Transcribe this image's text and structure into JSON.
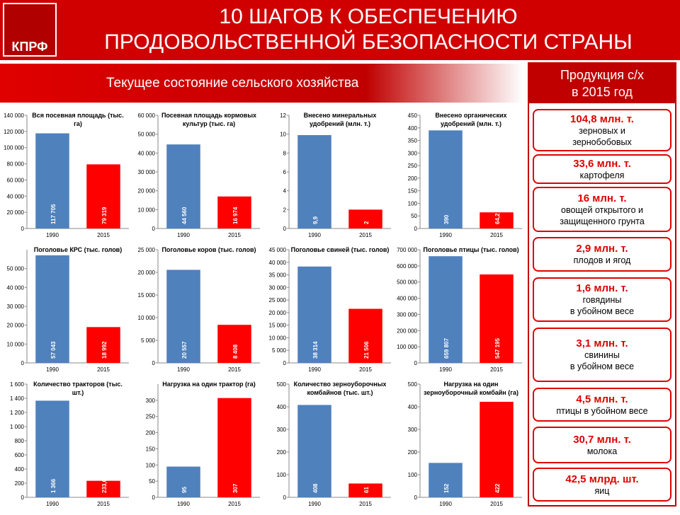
{
  "header": {
    "logo": "КПРФ",
    "title": "10 ШАГОВ К ОБЕСПЕЧЕНИЮ\nПРОДОВОЛЬСТВЕННОЙ БЕЗОПАСНОСТИ СТРАНЫ",
    "subtitle": "Текущее состояние сельского хозяйства"
  },
  "sidebar": {
    "title": "Продукция с/х\nв 2015 год",
    "items": [
      {
        "amount": "104,8 млн. т.",
        "desc": "зерновых и\nзернобобовых"
      },
      {
        "amount": "33,6 млн. т.",
        "desc": "картофеля"
      },
      {
        "amount": "16 млн. т.",
        "desc": "овощей открытого и\nзащищенного грунта"
      },
      {
        "amount": "2,9 млн. т.",
        "desc": "плодов и ягод"
      },
      {
        "amount": "1,6 млн. т.",
        "desc": "говядины\nв убойном весе"
      },
      {
        "amount": "3,1 млн. т.",
        "desc": "свинины\nв убойном весе"
      },
      {
        "amount": "4,5 млн. т.",
        "desc": "птицы в убойном весе"
      },
      {
        "amount": "30,7 млн. т.",
        "desc": "молока"
      },
      {
        "amount": "42,5 млрд. шт.",
        "desc": "яиц"
      }
    ]
  },
  "chart_data": [
    {
      "type": "bar",
      "title": "Вся посевная площадь (тыс. га)",
      "categories": [
        "1990",
        "2015"
      ],
      "values": [
        117705,
        79319
      ],
      "value_labels": [
        "117 705",
        "79 319"
      ],
      "colors": [
        "#4f81bd",
        "#ff0000"
      ],
      "ylim": [
        0,
        140000
      ],
      "yticks": [
        0,
        {
          "value": 20000,
          "label": "20 000"
        },
        {
          "value": 40000,
          "label": "40 000"
        },
        {
          "value": 60000,
          "label": "60 000"
        },
        {
          "value": 80000,
          "label": "80 000"
        },
        {
          "value": 100000,
          "label": "100 000"
        },
        {
          "value": 120000,
          "label": "120 000"
        },
        {
          "value": 140000,
          "label": "140 000"
        }
      ]
    },
    {
      "type": "bar",
      "title": "Посевная площадь кормовых культур (тыс. га)",
      "categories": [
        "1990",
        "2015"
      ],
      "values": [
        44560,
        16974
      ],
      "value_labels": [
        "44 560",
        "16 974"
      ],
      "colors": [
        "#4f81bd",
        "#ff0000"
      ],
      "ylim": [
        0,
        60000
      ],
      "yticks": [
        0,
        {
          "value": 10000,
          "label": "10 000"
        },
        {
          "value": 20000,
          "label": "20 000"
        },
        {
          "value": 30000,
          "label": "30 000"
        },
        {
          "value": 40000,
          "label": "40 000"
        },
        {
          "value": 50000,
          "label": "50 000"
        },
        {
          "value": 60000,
          "label": "60 000"
        }
      ]
    },
    {
      "type": "bar",
      "title": "Внесено минеральных удобрений (млн. т.)",
      "categories": [
        "1990",
        "2015"
      ],
      "values": [
        9.9,
        2
      ],
      "value_labels": [
        "9,9",
        "2"
      ],
      "colors": [
        "#4f81bd",
        "#ff0000"
      ],
      "ylim": [
        0,
        12
      ],
      "yticks": [
        0,
        2,
        4,
        6,
        8,
        10,
        12
      ]
    },
    {
      "type": "bar",
      "title": "Внесено органических удобрений (млн. т.)",
      "categories": [
        "1990",
        "2015"
      ],
      "values": [
        390,
        64.2
      ],
      "value_labels": [
        "390",
        "64,2"
      ],
      "colors": [
        "#4f81bd",
        "#ff0000"
      ],
      "ylim": [
        0,
        450
      ],
      "yticks": [
        0,
        50,
        100,
        150,
        200,
        250,
        300,
        350,
        400,
        450
      ]
    },
    {
      "type": "bar",
      "title": "Поголовье КРС (тыс. голов)",
      "categories": [
        "1990",
        "2015"
      ],
      "values": [
        57043,
        18992
      ],
      "value_labels": [
        "57 043",
        "18 992"
      ],
      "colors": [
        "#4f81bd",
        "#ff0000"
      ],
      "ylim": [
        0,
        60000
      ],
      "yticks": [
        0,
        {
          "value": 10000,
          "label": "10 000"
        },
        {
          "value": 20000,
          "label": "20 000"
        },
        {
          "value": 30000,
          "label": "30 000"
        },
        {
          "value": 40000,
          "label": "40 000"
        },
        {
          "value": 50000,
          "label": "50 000"
        }
      ]
    },
    {
      "type": "bar",
      "title": "Поголовье коров (тыс. голов)",
      "categories": [
        "1990",
        "2015"
      ],
      "values": [
        20557,
        8408
      ],
      "value_labels": [
        "20 557",
        "8 408"
      ],
      "colors": [
        "#4f81bd",
        "#ff0000"
      ],
      "ylim": [
        0,
        25000
      ],
      "yticks": [
        0,
        {
          "value": 5000,
          "label": "5 000"
        },
        {
          "value": 10000,
          "label": "10 000"
        },
        {
          "value": 15000,
          "label": "15 000"
        },
        {
          "value": 20000,
          "label": "20 000"
        },
        {
          "value": 25000,
          "label": "25 000"
        }
      ]
    },
    {
      "type": "bar",
      "title": "Поголовье свиней (тыс. голов)",
      "categories": [
        "1990",
        "2015"
      ],
      "values": [
        38314,
        21506
      ],
      "value_labels": [
        "38 314",
        "21 506"
      ],
      "colors": [
        "#4f81bd",
        "#ff0000"
      ],
      "ylim": [
        0,
        45000
      ],
      "yticks": [
        0,
        {
          "value": 5000,
          "label": "5 000"
        },
        {
          "value": 10000,
          "label": "10 000"
        },
        {
          "value": 15000,
          "label": "15 000"
        },
        {
          "value": 20000,
          "label": "20 000"
        },
        {
          "value": 25000,
          "label": "25 000"
        },
        {
          "value": 30000,
          "label": "30 000"
        },
        {
          "value": 35000,
          "label": "35 000"
        },
        {
          "value": 40000,
          "label": "40 000"
        },
        {
          "value": 45000,
          "label": "45 000"
        }
      ]
    },
    {
      "type": "bar",
      "title": "Поголовье птицы (тыс. голов)",
      "categories": [
        "1990",
        "2015"
      ],
      "values": [
        659807,
        547195
      ],
      "value_labels": [
        "659 807",
        "547 195"
      ],
      "colors": [
        "#4f81bd",
        "#ff0000"
      ],
      "ylim": [
        0,
        700000
      ],
      "yticks": [
        0,
        {
          "value": 100000,
          "label": "100 000"
        },
        {
          "value": 200000,
          "label": "200 000"
        },
        {
          "value": 300000,
          "label": "300 000"
        },
        {
          "value": 400000,
          "label": "400 000"
        },
        {
          "value": 500000,
          "label": "500 000"
        },
        {
          "value": 600000,
          "label": "600 000"
        },
        {
          "value": 700000,
          "label": "700 000"
        }
      ]
    },
    {
      "type": "bar",
      "title": "Количество тракторов (тыс. шт.)",
      "categories": [
        "1990",
        "2015"
      ],
      "values": [
        1366,
        233.6
      ],
      "value_labels": [
        "1 366",
        "233,6"
      ],
      "colors": [
        "#4f81bd",
        "#ff0000"
      ],
      "ylim": [
        0,
        1600
      ],
      "yticks": [
        0,
        200,
        400,
        600,
        800,
        {
          "value": 1000,
          "label": "1 000"
        },
        {
          "value": 1200,
          "label": "1 200"
        },
        {
          "value": 1400,
          "label": "1 400"
        },
        {
          "value": 1600,
          "label": "1 600"
        }
      ]
    },
    {
      "type": "bar",
      "title": "Нагрузка на один трактор (га)",
      "categories": [
        "1990",
        "2015"
      ],
      "values": [
        95,
        307
      ],
      "value_labels": [
        "95",
        "307"
      ],
      "colors": [
        "#4f81bd",
        "#ff0000"
      ],
      "ylim": [
        0,
        350
      ],
      "yticks": [
        0,
        50,
        100,
        150,
        200,
        250,
        300
      ]
    },
    {
      "type": "bar",
      "title": "Количество зерноуборочных комбайнов (тыс. шт.)",
      "categories": [
        "1990",
        "2015"
      ],
      "values": [
        408,
        61
      ],
      "value_labels": [
        "408",
        "61"
      ],
      "colors": [
        "#4f81bd",
        "#ff0000"
      ],
      "ylim": [
        0,
        500
      ],
      "yticks": [
        0,
        100,
        200,
        300,
        400,
        500
      ]
    },
    {
      "type": "bar",
      "title": "Нагрузка на один зерноуборочный комбайн (га)",
      "categories": [
        "1990",
        "2015"
      ],
      "values": [
        152,
        422
      ],
      "value_labels": [
        "152",
        "422"
      ],
      "colors": [
        "#4f81bd",
        "#ff0000"
      ],
      "ylim": [
        0,
        500
      ],
      "yticks": [
        0,
        100,
        200,
        300,
        400,
        500
      ]
    }
  ]
}
